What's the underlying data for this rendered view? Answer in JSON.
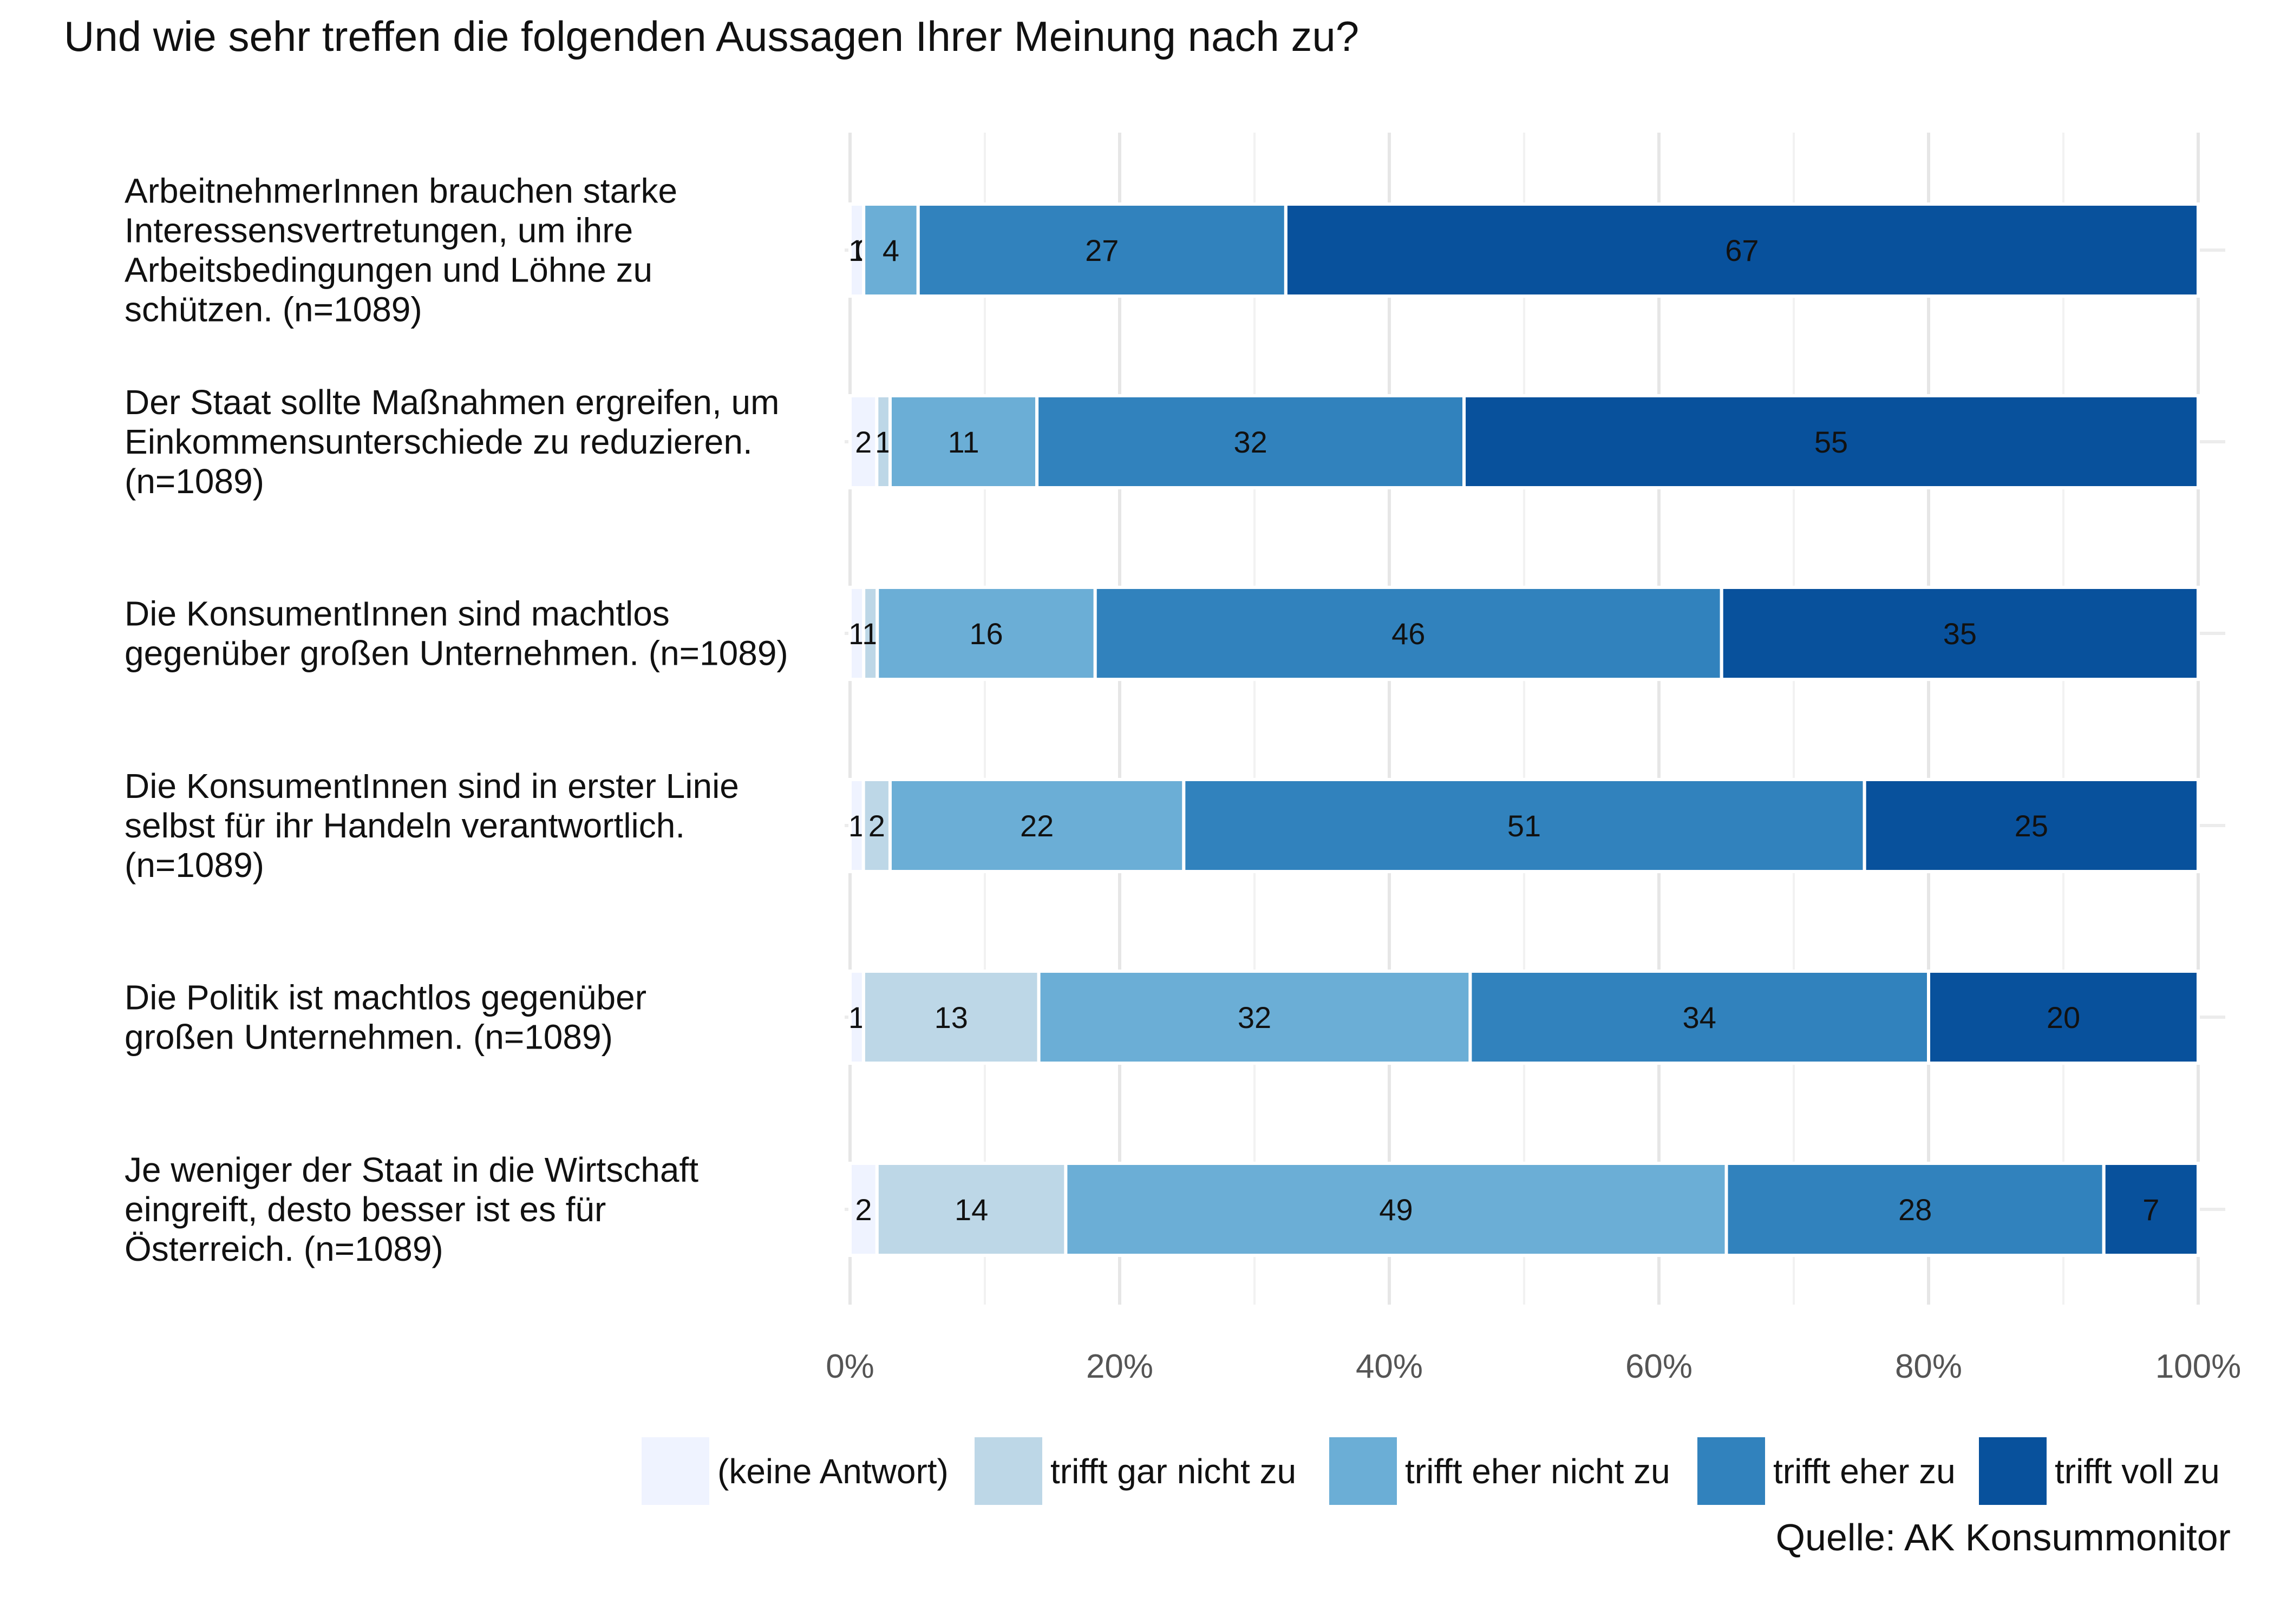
{
  "chart_data": {
    "type": "bar",
    "orientation": "horizontal",
    "stacked": true,
    "percent": true,
    "title": "Und wie sehr treffen die folgenden Aussagen Ihrer Meinung nach zu?",
    "source": "Quelle: AK Konsummonitor",
    "categories": [
      [
        "ArbeitnehmerInnen brauchen starke",
        "Interessensvertretungen, um ihre",
        "Arbeitsbedingungen und Löhne zu",
        "schützen. (n=1089)"
      ],
      [
        "Der Staat sollte Maßnahmen ergreifen, um",
        "Einkommensunterschiede zu reduzieren.",
        "(n=1089)"
      ],
      [
        "Die KonsumentInnen sind machtlos",
        "gegenüber großen Unternehmen. (n=1089)"
      ],
      [
        "Die KonsumentInnen sind in erster Linie",
        "selbst für ihr Handeln verantwortlich.",
        "(n=1089)"
      ],
      [
        "Die Politik ist machtlos gegenüber",
        "großen Unternehmen. (n=1089)"
      ],
      [
        "Je weniger der Staat in die Wirtschaft",
        "eingreift, desto besser ist es für",
        "Österreich. (n=1089)"
      ]
    ],
    "series": [
      {
        "name": "(keine Antwort)",
        "color": "#eff3ff",
        "values": [
          1,
          2,
          1,
          1,
          1,
          2
        ]
      },
      {
        "name": "trifft gar nicht zu",
        "color": "#bdd7e7",
        "values": [
          0,
          1,
          1,
          2,
          13,
          14
        ]
      },
      {
        "name": "trifft eher nicht zu",
        "color": "#6baed6",
        "values": [
          4,
          11,
          16,
          22,
          32,
          49
        ]
      },
      {
        "name": "trifft eher zu",
        "color": "#3182bd",
        "values": [
          27,
          32,
          46,
          51,
          34,
          28
        ]
      },
      {
        "name": "trifft voll zu",
        "color": "#08519c",
        "values": [
          67,
          55,
          35,
          25,
          20,
          7
        ]
      }
    ],
    "xlim": [
      0,
      100
    ],
    "xticks": [
      "0%",
      "20%",
      "40%",
      "60%",
      "80%",
      "100%"
    ],
    "grid": true,
    "legend": "bottom"
  }
}
